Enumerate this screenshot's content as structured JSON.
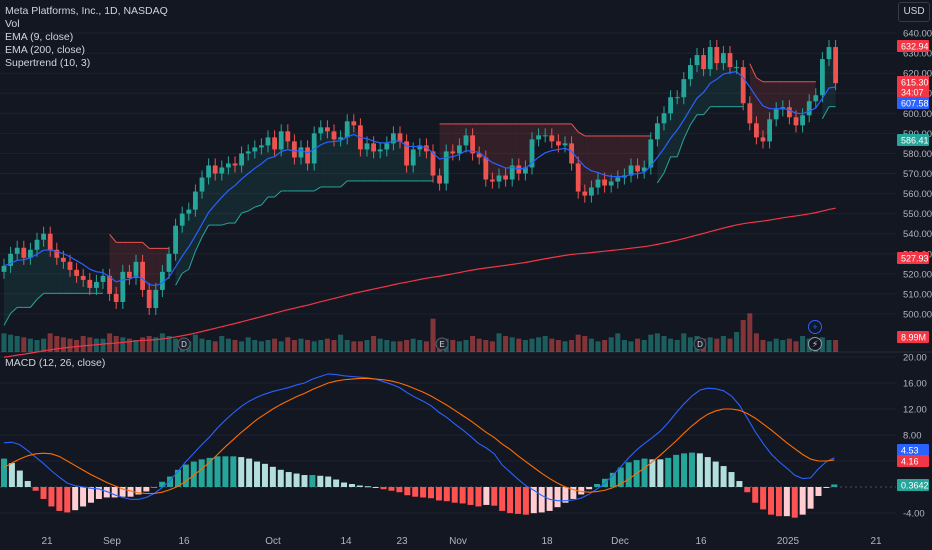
{
  "legend": {
    "title": "Meta Platforms, Inc., 1D, NASDAQ",
    "vol": "Vol",
    "ema9": "EMA (9, close)",
    "ema200": "EMA (200, close)",
    "supertrend": "Supertrend (10, 3)"
  },
  "macd_label": "MACD (12, 26, close)",
  "currency_button": "USD",
  "colors": {
    "bg": "#131722",
    "up": "#26a69a",
    "down": "#ef5350",
    "ema9": "#2962ff",
    "ema200": "#f23645",
    "macd": "#2962ff",
    "signal": "#ff6d00",
    "hist_up_strong": "#26a69a",
    "hist_up_weak": "#b2dfdb",
    "hist_down_strong": "#ff5252",
    "hist_down_weak": "#ffcdd2"
  },
  "chart_data": {
    "type": "candlestick",
    "price_axis": {
      "ticks": [
        640,
        630,
        620,
        610,
        600,
        590,
        580,
        570,
        560,
        550,
        540,
        530,
        520,
        510,
        500
      ],
      "range": [
        490,
        645
      ]
    },
    "macd_axis": {
      "ticks": [
        20.0,
        16.0,
        12.0,
        8.0,
        4.0,
        -4.0
      ],
      "range": [
        -6,
        21
      ]
    },
    "x_axis": {
      "labels": [
        "21",
        "Sep",
        "16",
        "Oct",
        "14",
        "23",
        "Nov",
        "18",
        "Dec",
        "16",
        "2025",
        "21"
      ]
    },
    "price_badges": [
      {
        "label": "632.94",
        "color": "#f23645"
      },
      {
        "label": "615.30",
        "color": "#f23645"
      },
      {
        "label": "34:07",
        "color": "#f23645"
      },
      {
        "label": "607.58",
        "color": "#2962ff"
      },
      {
        "label": "586.41",
        "color": "#26a69a"
      },
      {
        "label": "527.93",
        "color": "#f23645"
      },
      {
        "label": "8.99M",
        "color": "#f23645"
      }
    ],
    "macd_badges": [
      {
        "label": "4.53",
        "color": "#2962ff"
      },
      {
        "label": "4.16",
        "color": "#f23645"
      },
      {
        "label": "0.3642",
        "color": "#26a69a"
      }
    ],
    "close": [
      524,
      530,
      533,
      528,
      532,
      537,
      540,
      532,
      528,
      526,
      522,
      519,
      517,
      513,
      516,
      519,
      510,
      506,
      521,
      518,
      526,
      512,
      503,
      512,
      521,
      530,
      544,
      550,
      552,
      561,
      568,
      574,
      570,
      573,
      575,
      574,
      580,
      581,
      583,
      584,
      588,
      582,
      591,
      586,
      578,
      583,
      575,
      590,
      593,
      591,
      587,
      588,
      596,
      594,
      582,
      585,
      581,
      582,
      585,
      590,
      586,
      574,
      582,
      584,
      581,
      569,
      565,
      581,
      580,
      584,
      589,
      580,
      578,
      567,
      566,
      569,
      567,
      574,
      570,
      573,
      587,
      589,
      589,
      586,
      584,
      585,
      575,
      561,
      559,
      563,
      567,
      564,
      566,
      568,
      569,
      574,
      571,
      573,
      587,
      595,
      600,
      608,
      608,
      617,
      624,
      629,
      622,
      633,
      625,
      630,
      623,
      623,
      605,
      595,
      588,
      586,
      597,
      602,
      603,
      598,
      594,
      599,
      606,
      609,
      627,
      633,
      615
    ],
    "volume_m": [
      14,
      13,
      12,
      11,
      10,
      9,
      10,
      14,
      12,
      11,
      10,
      9,
      12,
      11,
      10,
      10,
      14,
      12,
      11,
      10,
      9,
      11,
      12,
      11,
      14,
      12,
      10,
      9,
      8,
      13,
      10,
      9,
      8,
      12,
      10,
      9,
      8,
      11,
      9,
      8,
      9,
      10,
      8,
      11,
      9,
      10,
      9,
      8,
      9,
      10,
      9,
      13,
      9,
      8,
      8,
      9,
      12,
      10,
      9,
      8,
      8,
      9,
      10,
      9,
      8,
      25,
      9,
      10,
      9,
      8,
      9,
      12,
      10,
      9,
      8,
      14,
      12,
      11,
      10,
      9,
      10,
      11,
      12,
      10,
      9,
      8,
      9,
      13,
      12,
      10,
      8,
      9,
      11,
      14,
      9,
      8,
      10,
      9,
      13,
      14,
      12,
      10,
      9,
      14,
      11,
      12,
      10,
      11,
      10,
      12,
      10,
      15,
      24,
      29,
      14,
      9,
      8,
      10,
      9,
      10,
      8,
      12,
      10,
      9,
      11,
      9,
      9
    ],
    "macd": [
      6.8,
      6.9,
      6.5,
      5.6,
      4.6,
      3.6,
      2.5,
      1.5,
      0.6,
      0.2,
      0.0,
      -0.2,
      -0.3,
      -0.7,
      -1.2,
      -1.6,
      -1.9,
      -1.9,
      -1.6,
      -1.0,
      -0.1,
      1.0,
      2.4,
      3.9,
      5.2,
      6.5,
      7.7,
      9.1,
      10.3,
      11.4,
      12.4,
      13.2,
      13.8,
      14.3,
      14.7,
      15.0,
      15.3,
      15.7,
      16.0,
      16.6,
      17.0,
      17.4,
      17.3,
      17.1,
      17.0,
      16.9,
      16.8,
      16.6,
      16.2,
      15.8,
      15.3,
      14.5,
      13.8,
      13.2,
      12.5,
      11.5,
      10.7,
      9.7,
      8.8,
      7.8,
      6.7,
      6.0,
      5.1,
      3.4,
      2.3,
      1.2,
      0.2,
      -0.5,
      -1.3,
      -1.9,
      -2.1,
      -2.1,
      -2.0,
      -1.7,
      -1.1,
      -0.3,
      0.6,
      1.8,
      3.1,
      4.5,
      5.7,
      6.7,
      7.6,
      8.6,
      9.9,
      11.4,
      12.8,
      14.0,
      14.9,
      15.2,
      15.1,
      14.8,
      14.0,
      12.6,
      10.6,
      8.5,
      6.7,
      5.1,
      3.9,
      2.9,
      1.8,
      1.3,
      1.4,
      2.8,
      3.9,
      4.5
    ],
    "signal": [
      3.0,
      3.7,
      4.3,
      4.8,
      5.1,
      5.2,
      5.1,
      4.7,
      4.0,
      3.3,
      2.6,
      1.9,
      1.3,
      0.7,
      0.2,
      -0.3,
      -0.6,
      -0.9,
      -1.0,
      -1.0,
      -0.8,
      -0.4,
      0.1,
      0.9,
      1.8,
      2.8,
      3.8,
      5.0,
      6.2,
      7.3,
      8.4,
      9.4,
      10.4,
      11.2,
      12.0,
      12.7,
      13.3,
      13.9,
      14.4,
      15.0,
      15.5,
      16.0,
      16.3,
      16.5,
      16.6,
      16.7,
      16.7,
      16.6,
      16.5,
      16.3,
      16.0,
      15.6,
      15.1,
      14.6,
      14.0,
      13.3,
      12.6,
      11.8,
      11.0,
      10.2,
      9.3,
      8.4,
      7.6,
      6.6,
      5.8,
      4.8,
      3.9,
      3.0,
      2.1,
      1.3,
      0.6,
      0.0,
      -0.4,
      -0.7,
      -0.8,
      -0.7,
      -0.5,
      -0.1,
      0.5,
      1.2,
      2.1,
      2.9,
      3.9,
      4.9,
      6.0,
      7.1,
      8.3,
      9.4,
      10.4,
      11.2,
      11.7,
      12.0,
      12.0,
      11.8,
      11.3,
      10.6,
      9.7,
      8.8,
      7.8,
      6.8,
      5.9,
      5.0,
      4.3,
      4.0,
      4.0,
      4.16
    ]
  }
}
